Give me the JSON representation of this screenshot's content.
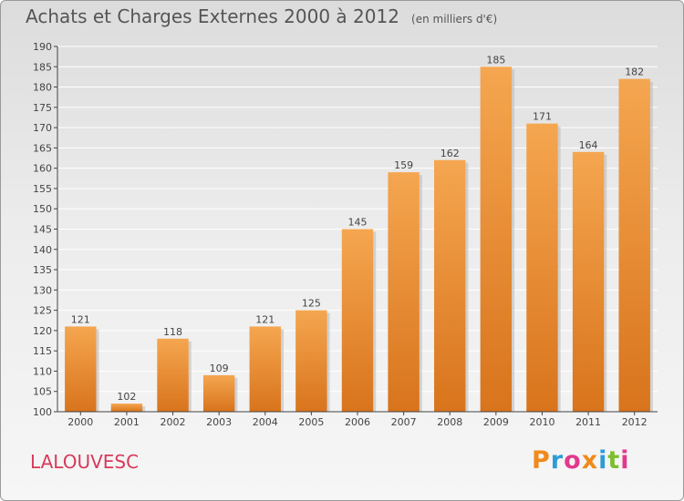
{
  "header": {
    "title": "Achats et Charges Externes 2000 à 2012",
    "unit_note": "(en milliers d'€)"
  },
  "footer": {
    "commune": "LALOUVESC",
    "logo_text": "Proxiti",
    "logo_colors": [
      "#f08a1c",
      "#2f9bd6",
      "#e03a8c",
      "#f08a1c",
      "#2f9bd6",
      "#7cbf2e",
      "#e03a8c"
    ]
  },
  "colors": {
    "bar_top": "#f5a650",
    "bar_bottom": "#d8741c",
    "grid": "#ffffff",
    "axis": "#444444",
    "commune": "#d63a5a"
  },
  "chart_data": {
    "type": "bar",
    "title": "Achats et Charges Externes 2000 à 2012",
    "subtitle": "(en milliers d'€)",
    "xlabel": "",
    "ylabel": "",
    "categories": [
      "2000",
      "2001",
      "2002",
      "2003",
      "2004",
      "2005",
      "2006",
      "2007",
      "2008",
      "2009",
      "2010",
      "2011",
      "2012"
    ],
    "values": [
      121,
      102,
      118,
      109,
      121,
      125,
      145,
      159,
      162,
      185,
      171,
      164,
      182
    ],
    "ylim": [
      100,
      190
    ],
    "ytick_step": 5,
    "grid": true,
    "data_labels": true
  }
}
